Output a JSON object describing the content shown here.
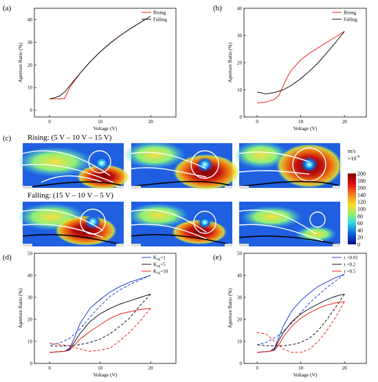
{
  "colors": {
    "rising": "#e8231f",
    "falling": "#111111",
    "blue": "#1f3fd6",
    "red": "#e8231f",
    "black": "#111111"
  },
  "panel_labels": {
    "a": "(a)",
    "b": "(b)",
    "c": "(c)",
    "d": "(d)",
    "e": "(e)"
  },
  "sim": {
    "rising_title": "Rising: (5 V – 10 V – 15 V)",
    "falling_title": "Falling: (15 V – 10 V – 5 V)",
    "colorbar": {
      "unit": "m/s",
      "scale": "×10",
      "scale_exp": "-6",
      "ticks": [
        "200",
        "180",
        "160",
        "140",
        "120",
        "100",
        "80",
        "60",
        "40",
        "20",
        "0"
      ]
    }
  },
  "chart_data": [
    {
      "id": "a",
      "type": "line",
      "xlabel": "Voltage (V)",
      "ylabel": "Aperture Ratio (%)",
      "xlim": [
        -3,
        25
      ],
      "ylim": [
        -3,
        45
      ],
      "xticks": [
        0,
        10,
        20
      ],
      "yticks": [
        0,
        10,
        20,
        30,
        40
      ],
      "legend": "top-right",
      "series": [
        {
          "name": "Rising",
          "color": "#e8231f",
          "dash": false,
          "x": [
            0,
            1,
            2,
            3,
            4,
            6,
            8,
            10,
            12,
            14,
            16,
            18,
            20
          ],
          "y": [
            5,
            5,
            5,
            5.2,
            10,
            16.2,
            21.3,
            25.7,
            29.6,
            33,
            36,
            38.8,
            41.5
          ]
        },
        {
          "name": "Falling",
          "color": "#111111",
          "dash": false,
          "x": [
            20,
            18,
            16,
            14,
            12,
            10,
            8,
            6,
            4,
            3,
            2,
            1,
            0
          ],
          "y": [
            41.5,
            38.8,
            36,
            33,
            29.6,
            25.7,
            21.3,
            16.2,
            10.8,
            8,
            6.3,
            5.5,
            5
          ]
        }
      ]
    },
    {
      "id": "b",
      "type": "line",
      "xlabel": "Voltage (V)",
      "ylabel": "Aperture Ratio (%)",
      "xlim": [
        -3,
        25
      ],
      "ylim": [
        0,
        40
      ],
      "xticks": [
        0,
        10,
        20
      ],
      "yticks": [
        0,
        10,
        20,
        30,
        40
      ],
      "legend": "top-right",
      "series": [
        {
          "name": "Rising",
          "color": "#e8231f",
          "dash": false,
          "x": [
            0,
            2,
            4,
            5,
            6,
            7,
            8,
            10,
            12,
            14,
            16,
            18,
            20
          ],
          "y": [
            5.2,
            5.5,
            6.5,
            8,
            11.5,
            15,
            17.5,
            21,
            23.5,
            25.5,
            27.5,
            29.5,
            31.5
          ]
        },
        {
          "name": "Falling",
          "color": "#111111",
          "dash": false,
          "x": [
            20,
            18,
            16,
            14,
            12,
            10,
            8,
            6,
            4,
            2,
            0
          ],
          "y": [
            31.5,
            27.5,
            23.7,
            20,
            16.9,
            14.1,
            11.8,
            10,
            9,
            8.5,
            9.2
          ]
        }
      ]
    },
    {
      "id": "d",
      "type": "line",
      "xlabel": "Voltage (V)",
      "ylabel": "Aperture Ratio (%)",
      "xlim": [
        -3,
        25
      ],
      "ylim": [
        0,
        50
      ],
      "xticks": [
        0,
        10,
        20
      ],
      "yticks": [
        0,
        10,
        20,
        30,
        40,
        50
      ],
      "legend": "top-right",
      "legend_labels": [
        {
          "main": "K",
          "sub": "inj",
          "rest": "=1",
          "color": "#1f3fd6"
        },
        {
          "main": "K",
          "sub": "inj",
          "rest": "=5",
          "color": "#111111"
        },
        {
          "main": "K",
          "sub": "inj",
          "rest": "=10",
          "color": "#e8231f"
        }
      ],
      "series": [
        {
          "color": "#1f3fd6",
          "dash": false,
          "x": [
            0,
            3,
            4,
            5,
            6,
            8,
            10,
            12,
            14,
            16,
            18,
            20
          ],
          "y": [
            5,
            5.5,
            7,
            12,
            18,
            25,
            29,
            32.5,
            35,
            37,
            38.5,
            40
          ]
        },
        {
          "color": "#1f3fd6",
          "dash": true,
          "x": [
            20,
            18,
            16,
            14,
            12,
            10,
            8,
            6,
            4,
            2,
            0
          ],
          "y": [
            40,
            38,
            36,
            33.5,
            30.5,
            26,
            21,
            15.5,
            11.5,
            9.2,
            8.5
          ]
        },
        {
          "color": "#111111",
          "dash": false,
          "x": [
            0,
            3,
            4,
            5,
            6,
            8,
            10,
            12,
            14,
            16,
            18,
            20
          ],
          "y": [
            5,
            5.5,
            6.5,
            10,
            13.5,
            19,
            22.5,
            25,
            27,
            28.5,
            30,
            31.5
          ]
        },
        {
          "color": "#111111",
          "dash": true,
          "x": [
            20,
            18,
            16,
            14,
            12,
            10,
            8,
            6,
            4,
            2,
            0
          ],
          "y": [
            31.5,
            26.5,
            21,
            17,
            13.5,
            11,
            9.5,
            8.5,
            8,
            7.8,
            8
          ]
        },
        {
          "color": "#e8231f",
          "dash": false,
          "x": [
            0,
            3,
            4,
            5,
            6,
            8,
            10,
            12,
            14,
            16,
            18,
            20
          ],
          "y": [
            5,
            5.5,
            6,
            8.5,
            11,
            14.5,
            17.5,
            20.5,
            22.5,
            23.5,
            24.5,
            25
          ]
        },
        {
          "color": "#e8231f",
          "dash": true,
          "x": [
            20,
            18,
            16,
            14,
            12,
            10,
            8,
            6,
            4,
            2,
            0
          ],
          "y": [
            25,
            19.5,
            14.5,
            10.5,
            7,
            6,
            5.5,
            6.5,
            8,
            8.5,
            9.2
          ]
        }
      ]
    },
    {
      "id": "e",
      "type": "line",
      "xlabel": "Voltage (V)",
      "ylabel": "Aperture Ratio (%)",
      "xlim": [
        -3,
        25
      ],
      "ylim": [
        0,
        50
      ],
      "xticks": [
        0,
        10,
        20
      ],
      "yticks": [
        0,
        10,
        20,
        30,
        40,
        50
      ],
      "legend": "top-right",
      "legend_labels": [
        {
          "main": "τ",
          "sub": "",
          "rest": " =0.01",
          "color": "#1f3fd6"
        },
        {
          "main": "τ",
          "sub": "",
          "rest": " =0.2",
          "color": "#111111"
        },
        {
          "main": "τ",
          "sub": "",
          "rest": " =0.5",
          "color": "#e8231f"
        }
      ],
      "series": [
        {
          "color": "#1f3fd6",
          "dash": false,
          "x": [
            0,
            3,
            4,
            5,
            6,
            8,
            10,
            12,
            14,
            16,
            18,
            20
          ],
          "y": [
            5,
            5.5,
            7,
            12,
            17,
            24,
            28.5,
            32,
            35,
            37,
            39,
            40.5
          ]
        },
        {
          "color": "#1f3fd6",
          "dash": true,
          "x": [
            20,
            18,
            16,
            14,
            12,
            10,
            8,
            6,
            4,
            2,
            0
          ],
          "y": [
            40.5,
            37.5,
            34.5,
            31,
            27.5,
            23,
            18.5,
            14.5,
            11.5,
            9.5,
            8.5
          ]
        },
        {
          "color": "#111111",
          "dash": false,
          "x": [
            0,
            3,
            4,
            5,
            6,
            8,
            10,
            12,
            14,
            16,
            18,
            20
          ],
          "y": [
            5,
            5.5,
            6.5,
            10.5,
            14,
            19,
            22.5,
            25,
            27,
            29,
            30.5,
            31.5
          ]
        },
        {
          "color": "#111111",
          "dash": true,
          "x": [
            20,
            18,
            16,
            14,
            12,
            10,
            8,
            6,
            4,
            2,
            0
          ],
          "y": [
            31.5,
            25.5,
            20,
            15,
            11.5,
            9.5,
            8.5,
            8,
            8,
            8,
            8.5
          ]
        },
        {
          "color": "#e8231f",
          "dash": false,
          "x": [
            0,
            3,
            4,
            5,
            6,
            8,
            10,
            12,
            14,
            16,
            18,
            20
          ],
          "y": [
            5,
            5.5,
            6,
            8.5,
            12,
            17,
            20.5,
            23,
            25,
            26.5,
            27.5,
            28
          ]
        },
        {
          "color": "#e8231f",
          "dash": true,
          "x": [
            20,
            18,
            16,
            14,
            12,
            10,
            8,
            6,
            4,
            2,
            0
          ],
          "y": [
            28,
            21,
            15,
            10,
            6.5,
            5,
            5,
            6.5,
            10,
            13.5,
            14
          ]
        }
      ]
    }
  ]
}
